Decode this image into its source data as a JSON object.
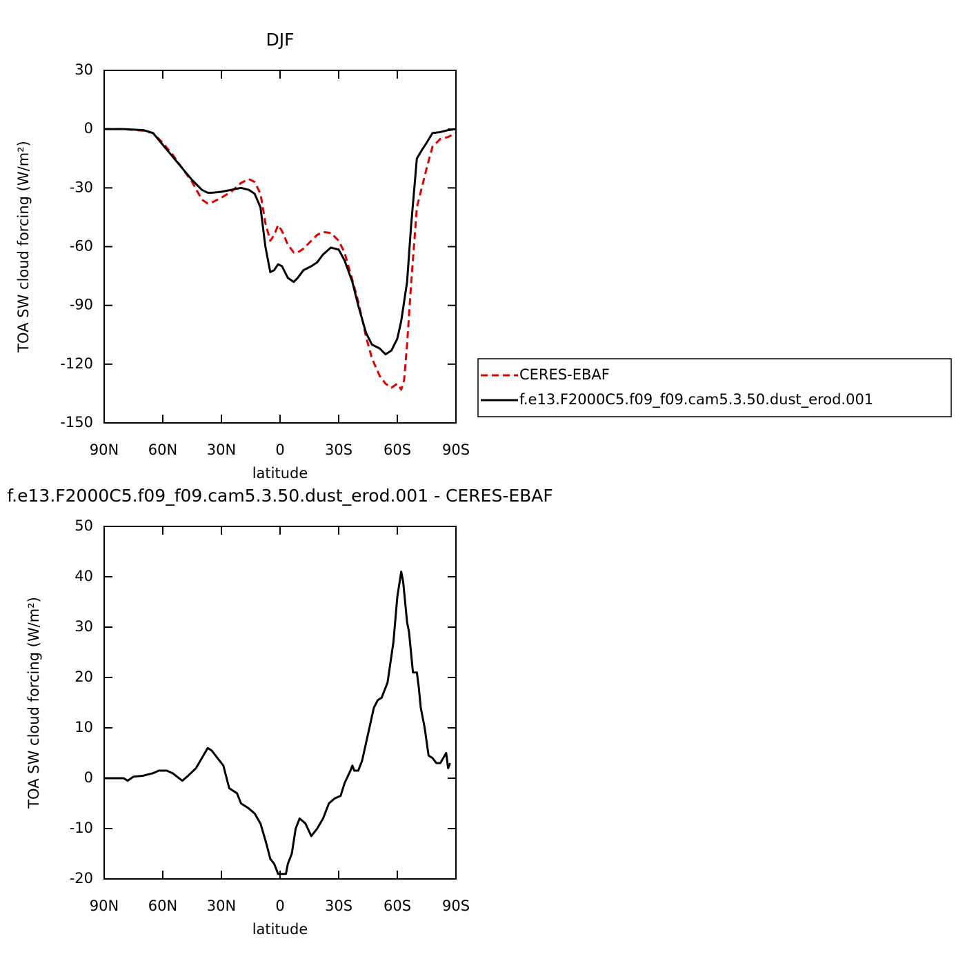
{
  "chart_data": [
    {
      "type": "line",
      "title": "DJF",
      "xlabel": "latitude",
      "ylabel": "TOA SW cloud forcing (W/m²)",
      "xlim": [
        90,
        -90
      ],
      "xticks": [
        {
          "value": 90,
          "label": "90N"
        },
        {
          "value": 60,
          "label": "60N"
        },
        {
          "value": 30,
          "label": "30N"
        },
        0,
        {
          "value": -30,
          "label": "30S"
        },
        {
          "value": -60,
          "label": "60S"
        },
        {
          "value": -90,
          "label": "90S"
        }
      ],
      "ylim": [
        -150,
        30
      ],
      "yticks": [
        30,
        0,
        -30,
        -60,
        -90,
        -120,
        -150
      ],
      "legend": "right",
      "x": [
        90,
        80,
        70,
        65,
        60,
        55,
        50,
        45,
        40,
        37,
        35,
        30,
        25,
        20,
        16,
        13,
        10,
        7.5,
        5,
        3,
        1,
        -1,
        -4,
        -7,
        -9,
        -12,
        -16,
        -19,
        -22,
        -26,
        -30,
        -33,
        -37,
        -40,
        -44,
        -47,
        -51,
        -54,
        -57,
        -60,
        -62,
        -63.5,
        -65,
        -67,
        -70,
        -73,
        -75,
        -78,
        -82,
        -86,
        -90
      ],
      "series": [
        {
          "name": "CERES-EBAF",
          "color": "#e00000",
          "linestyle": "dashed",
          "values": [
            0,
            0,
            -0.8,
            -2,
            -7,
            -13,
            -20,
            -27,
            -36,
            -38,
            -37.5,
            -35,
            -32,
            -27.5,
            -25.5,
            -27,
            -33,
            -48,
            -57,
            -54,
            -49,
            -52,
            -59,
            -63,
            -63,
            -61,
            -57,
            -54,
            -52.5,
            -53,
            -57,
            -63,
            -77,
            -88,
            -106,
            -117,
            -126,
            -130,
            -132,
            -130,
            -133,
            -128,
            -110,
            -80,
            -40,
            -28,
            -20,
            -9,
            -5,
            -4,
            -2
          ]
        },
        {
          "name": "f.e13.F2000C5.f09_f09.cam5.3.50.dust_erod.001",
          "color": "#000000",
          "linestyle": "solid",
          "values": [
            0,
            0,
            -0.5,
            -2,
            -8,
            -14,
            -20,
            -26,
            -31,
            -32.5,
            -32.5,
            -32,
            -31,
            -30,
            -31,
            -33,
            -40,
            -60,
            -73,
            -72,
            -69,
            -70,
            -76,
            -78,
            -76,
            -72,
            -70,
            -68,
            -64,
            -60.5,
            -61.5,
            -67,
            -78,
            -90,
            -104,
            -110,
            -112,
            -115,
            -113,
            -107,
            -98,
            -88,
            -78,
            -50,
            -15,
            -10,
            -7,
            -2,
            -1.5,
            -0.5,
            0
          ]
        }
      ]
    },
    {
      "type": "line",
      "title": "f.e13.F2000C5.f09_f09.cam5.3.50.dust_erod.001 - CERES-EBAF",
      "xlabel": "latitude",
      "ylabel": "TOA SW cloud forcing (W/m²)",
      "xlim": [
        90,
        -90
      ],
      "xticks": [
        {
          "value": 90,
          "label": "90N"
        },
        {
          "value": 60,
          "label": "60N"
        },
        {
          "value": 30,
          "label": "30N"
        },
        0,
        {
          "value": -30,
          "label": "30S"
        },
        {
          "value": -60,
          "label": "60S"
        },
        {
          "value": -90,
          "label": "90S"
        }
      ],
      "ylim": [
        -20,
        50
      ],
      "yticks": [
        50,
        40,
        30,
        20,
        10,
        0,
        -10,
        -20
      ],
      "x": [
        90,
        80,
        78,
        75,
        70,
        65,
        62,
        58,
        55,
        50,
        47,
        43,
        40,
        37,
        35,
        32,
        29,
        26,
        22,
        20,
        16,
        13,
        10,
        7,
        5,
        3,
        1,
        -3,
        -4,
        -6,
        -8,
        -10,
        -13,
        -16,
        -19,
        -22,
        -25,
        -28,
        -31,
        -33,
        -36,
        -37,
        -38,
        -40,
        -42,
        -44,
        -48,
        -50,
        -52,
        -55,
        -58,
        -60,
        -62,
        -63,
        -65,
        -66,
        -68,
        -70,
        -71,
        -72,
        -74,
        -76,
        -78,
        -80,
        -82,
        -85,
        -86,
        -87
      ],
      "series": [
        {
          "color": "#000000",
          "linestyle": "solid",
          "values": [
            0,
            0,
            -0.5,
            0.3,
            0.5,
            1,
            1.5,
            1.5,
            1,
            -0.5,
            0.5,
            2,
            4,
            6,
            5.5,
            4,
            2.5,
            -2,
            -3,
            -5,
            -6,
            -7,
            -9,
            -13,
            -16,
            -17,
            -19,
            -19,
            -17,
            -15,
            -10,
            -8,
            -9,
            -11.5,
            -10,
            -8,
            -5,
            -4,
            -3.5,
            -1,
            1.5,
            2.5,
            1.5,
            1.5,
            3.5,
            7,
            14,
            15.5,
            16,
            19,
            27,
            36,
            41,
            39,
            31,
            29,
            21,
            21,
            18,
            14,
            10,
            4.5,
            4,
            3,
            3,
            5,
            2,
            3
          ]
        }
      ]
    }
  ]
}
